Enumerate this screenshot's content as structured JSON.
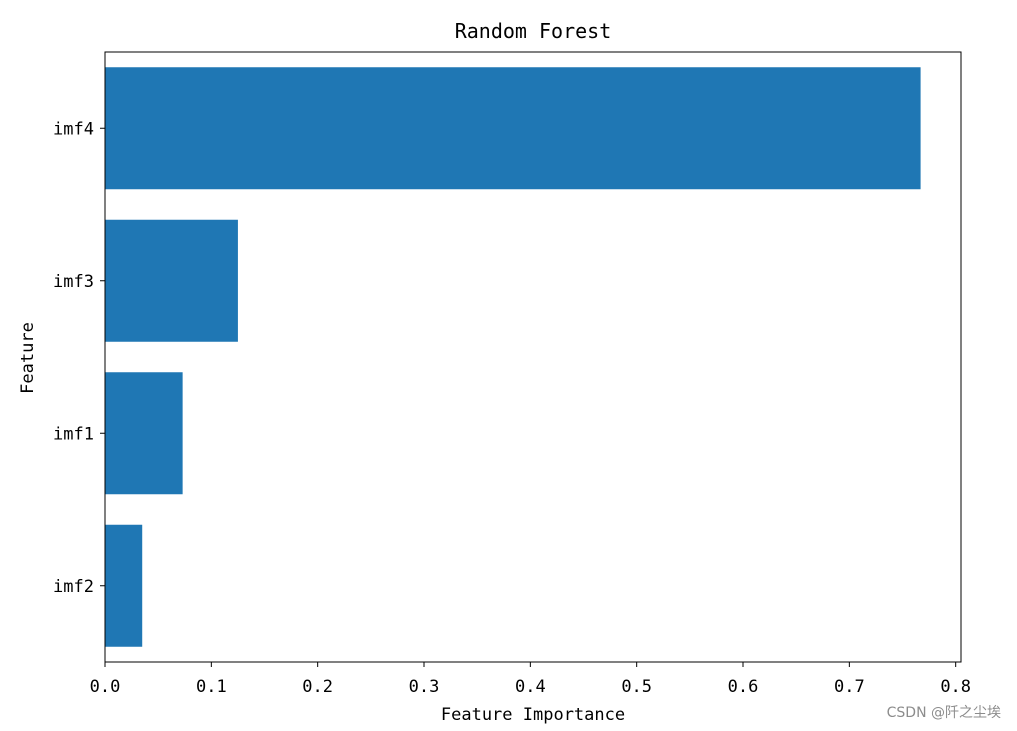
{
  "chart_data": {
    "type": "bar",
    "orientation": "horizontal",
    "title": "Random Forest",
    "xlabel": "Feature Importance",
    "ylabel": "Feature",
    "categories": [
      "imf4",
      "imf3",
      "imf1",
      "imf2"
    ],
    "values": [
      0.767,
      0.125,
      0.073,
      0.035
    ],
    "xlim": [
      0.0,
      0.805
    ],
    "xticks": [
      "0.0",
      "0.1",
      "0.2",
      "0.3",
      "0.4",
      "0.5",
      "0.6",
      "0.7",
      "0.8"
    ],
    "bar_color": "#1f77b4",
    "grid": false,
    "legend": "none"
  },
  "watermark": "CSDN @阡之尘埃"
}
